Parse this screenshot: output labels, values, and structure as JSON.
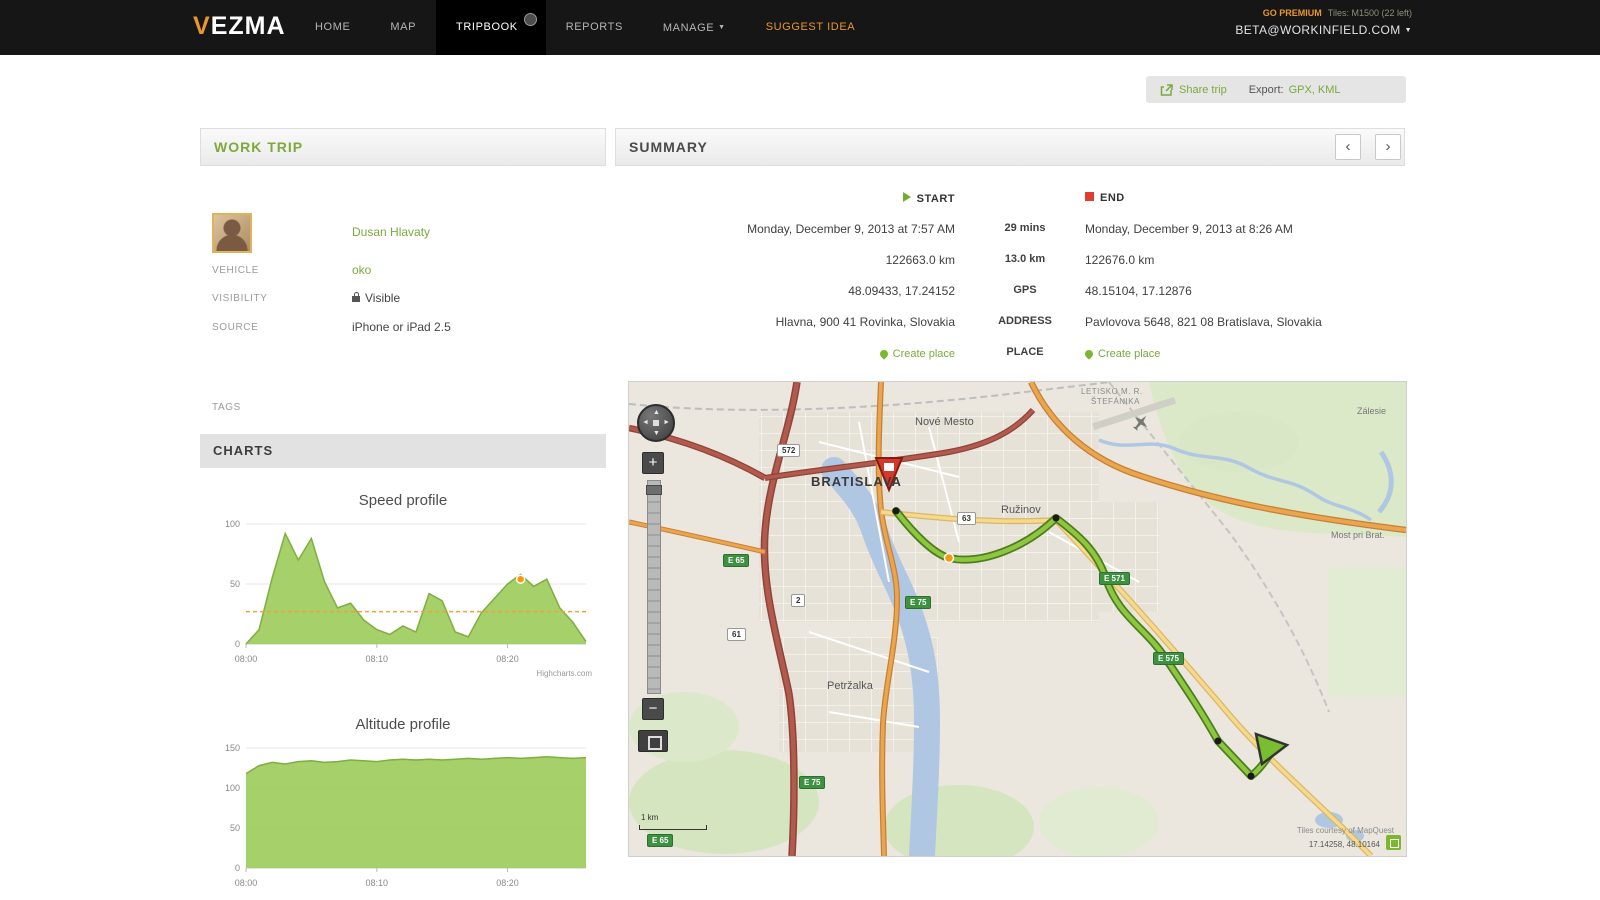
{
  "nav": {
    "logo": "VEZMA",
    "items": [
      "HOME",
      "MAP",
      "TRIPBOOK",
      "REPORTS",
      "MANAGE",
      "SUGGEST IDEA"
    ],
    "caret": "▼",
    "premium_go": "GO PREMIUM",
    "premium_tiles": "Tiles: M1500 (22 left)",
    "account": "BETA@WORKINFIELD.COM"
  },
  "toolbar": {
    "share": "Share trip",
    "export_label": "Export:",
    "export_formats": "GPX, KML"
  },
  "trip": {
    "title": "WORK TRIP",
    "driver": "Dusan Hlavaty",
    "vehicle_label": "VEHICLE",
    "vehicle": "oko",
    "visibility_label": "VISIBILITY",
    "visibility": "Visible",
    "source_label": "SOURCE",
    "source": "iPhone or iPad 2.5",
    "tags_label": "TAGS",
    "charts_label": "CHARTS"
  },
  "summary": {
    "title": "SUMMARY",
    "prev": "‹",
    "next": "›",
    "start_label": "START",
    "end_label": "END",
    "rows": [
      {
        "start": "Monday, December 9, 2013 at 7:57 AM",
        "mid": "29 mins",
        "end": "Monday, December 9, 2013 at 8:26 AM"
      },
      {
        "start": "122663.0 km",
        "mid": "13.0 km",
        "end": "122676.0 km"
      },
      {
        "start": "48.09433, 17.24152",
        "mid": "GPS",
        "end": "48.15104, 17.12876"
      },
      {
        "start": "Hlavna, 900 41 Rovinka, Slovakia",
        "mid": "ADDRESS",
        "end": "Pavlovova 5648, 821 08 Bratislava, Slovakia"
      }
    ],
    "place_label": "PLACE",
    "create_place": "Create place"
  },
  "chart_data": [
    {
      "type": "area",
      "title": "Speed profile",
      "x_ticks": [
        "08:00",
        "08:10",
        "08:20"
      ],
      "x_tick_minutes": [
        0,
        10,
        20
      ],
      "values": [
        0,
        12,
        55,
        92,
        70,
        88,
        52,
        30,
        34,
        20,
        12,
        8,
        15,
        10,
        42,
        36,
        10,
        6,
        26,
        38,
        50,
        58,
        48,
        54,
        30,
        18,
        2
      ],
      "ylim": [
        0,
        100
      ],
      "yticks": [
        0,
        50,
        100
      ],
      "avg_line": 27,
      "marker": {
        "minute": 21,
        "value": 54
      },
      "color": "#9ccb5a",
      "line_color": "#7fae3e",
      "credit": "Highcharts.com"
    },
    {
      "type": "area",
      "title": "Altitude profile",
      "x_ticks": [
        "08:00",
        "08:10",
        "08:20"
      ],
      "x_tick_minutes": [
        0,
        10,
        20
      ],
      "values": [
        118,
        128,
        132,
        130,
        133,
        134,
        132,
        133,
        135,
        134,
        133,
        135,
        136,
        135,
        136,
        135,
        136,
        137,
        136,
        137,
        138,
        137,
        138,
        139,
        138,
        137,
        138
      ],
      "ylim": [
        0,
        150
      ],
      "yticks": [
        0,
        50,
        100,
        150
      ],
      "color": "#9ccb5a",
      "line_color": "#7fae3e"
    }
  ],
  "map": {
    "places": [
      "BRATISLAVA",
      "Nové Mesto",
      "Ružinov",
      "Petržalka",
      "LETISKO M. R.",
      "ŠTEFÁNIKA",
      "Most pri Brat.",
      "Zálesie"
    ],
    "badges": [
      "572",
      "63",
      "2",
      "61",
      "E 65",
      "E 75",
      "E 571",
      "E 575",
      "E 75",
      "E 65"
    ],
    "scale": "1 km",
    "attribution": "Tiles courtesy of MapQuest",
    "coords": "17.14258, 48.10164",
    "route_color": "#8dc63f"
  }
}
